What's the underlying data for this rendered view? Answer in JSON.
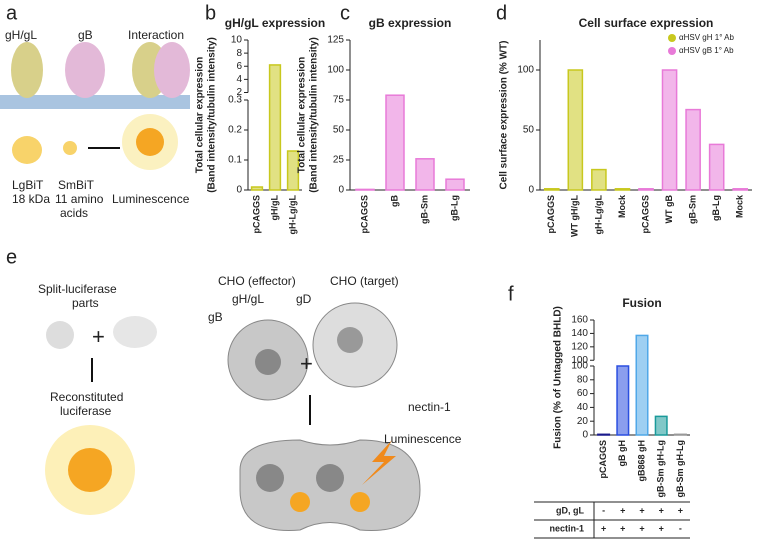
{
  "panels": [
    "a",
    "b",
    "c",
    "d",
    "e",
    "f"
  ],
  "panel_a": {
    "top_labels": [
      "gH/gL",
      "gB",
      "Interaction"
    ],
    "lgbit": [
      "LgBiT",
      "18 kDa"
    ],
    "smbit": [
      "SmBiT",
      "11 amino",
      "acids"
    ],
    "luminescence": "Luminescence"
  },
  "panel_e": {
    "split": [
      "Split-luciferase",
      "parts"
    ],
    "reconstituted": [
      "Reconstituted",
      "luciferase"
    ],
    "effector": "CHO (effector)",
    "target": "CHO (target)",
    "gh_gl": "gH/gL",
    "gb": "gB",
    "gd": "gD",
    "nectin": "nectin-1",
    "luminescence": "Luminescence"
  },
  "chart_data": [
    {
      "type": "bar",
      "title": "gH/gL expression",
      "ylabel": [
        "Total cellular expression",
        "(Band intensity/tubulin intensity)"
      ],
      "categories": [
        "pCAGGS",
        "gH/gL",
        "gH-Lg/gL"
      ],
      "values": [
        0.01,
        6.2,
        0.13
      ],
      "color": "#c8c81e",
      "ylim": [
        0,
        0.3
      ],
      "yticks": [
        0,
        0.1,
        0.2,
        0.3
      ],
      "break": {
        "ylim": [
          2,
          10
        ],
        "yticks": [
          2,
          4,
          6,
          8,
          10
        ]
      }
    },
    {
      "type": "bar",
      "title": "gB expression",
      "ylabel": [
        "Total cellular expression",
        "(Band intensity/tubulin intensity)"
      ],
      "categories": [
        "pCAGGS",
        "gB",
        "gB-Sm",
        "gB-Lg"
      ],
      "values": [
        0.5,
        79,
        26,
        9
      ],
      "color": "#e87ad8",
      "ylim": [
        0,
        125
      ],
      "yticks": [
        0,
        25,
        50,
        75,
        100,
        125
      ]
    },
    {
      "type": "bar",
      "title": "Cell surface expression",
      "ylabel": [
        "Cell surface expression (% WT)"
      ],
      "categories": [
        "pCAGGS",
        "WT gH/gL",
        "gH-Lg/gL",
        "Mock",
        "pCAGGS",
        "WT gB",
        "gB-Sm",
        "gB-Lg",
        "Mock"
      ],
      "series": [
        {
          "name": "αHSV gH 1° Ab",
          "color": "#c8c81e",
          "values": [
            1,
            100,
            17,
            1,
            null,
            null,
            null,
            null,
            null
          ]
        },
        {
          "name": "αHSV gB 1° Ab",
          "color": "#e87ad8",
          "values": [
            null,
            null,
            null,
            null,
            1,
            100,
            67,
            38,
            1
          ]
        }
      ],
      "ylim": [
        0,
        125
      ],
      "yticks": [
        0,
        50,
        100
      ],
      "legend": "top-right"
    },
    {
      "type": "bar",
      "title": "Fusion",
      "ylabel": [
        "Fusion (% of Untagged BHLD)"
      ],
      "categories": [
        "pCAGGS",
        "gB gH",
        "gB868 gH",
        "gB-Sm gH-Lg",
        "gB-Sm gH-Lg"
      ],
      "values": [
        1,
        100,
        137,
        27,
        1
      ],
      "colors": [
        "#1a1a8c",
        "#2b4fe0",
        "#4fa8e8",
        "#1a9a9a",
        "#999999"
      ],
      "ylim": [
        0,
        100
      ],
      "yticks": [
        0,
        20,
        40,
        60,
        80,
        100
      ],
      "break": {
        "ylim": [
          100,
          160
        ],
        "yticks": [
          100,
          120,
          140,
          160
        ]
      },
      "table": {
        "rows": [
          [
            "gD, gL",
            "-",
            "+",
            "+",
            "+",
            "+"
          ],
          [
            "nectin-1",
            "+",
            "+",
            "+",
            "+",
            "-"
          ]
        ]
      }
    }
  ]
}
